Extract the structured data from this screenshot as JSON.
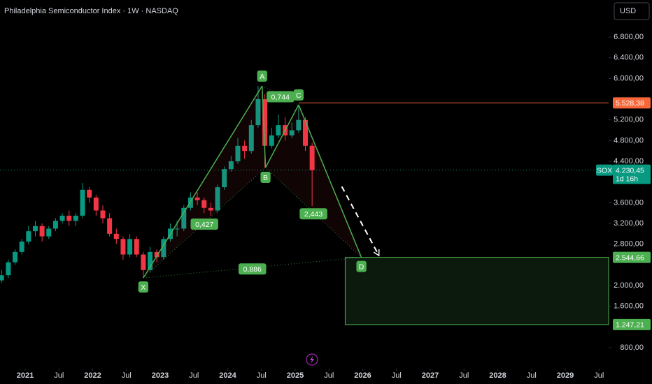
{
  "chart_data": {
    "type": "candlestick",
    "title": "Philadelphia Semiconductor Index · 1W · NASDAQ",
    "currency": "USD",
    "up_color": "#089981",
    "down_color": "#f23645",
    "x": [
      2020.65,
      2020.75,
      2020.85,
      2020.95,
      2021.05,
      2021.15,
      2021.25,
      2021.35,
      2021.45,
      2021.55,
      2021.65,
      2021.75,
      2021.85,
      2021.95,
      2022.05,
      2022.15,
      2022.25,
      2022.35,
      2022.45,
      2022.55,
      2022.65,
      2022.75,
      2022.85,
      2022.95,
      2023.05,
      2023.15,
      2023.25,
      2023.35,
      2023.45,
      2023.55,
      2023.65,
      2023.75,
      2023.85,
      2023.95,
      2024.05,
      2024.15,
      2024.25,
      2024.35,
      2024.45,
      2024.55,
      2024.65,
      2024.75,
      2024.85,
      2024.95,
      2025.05,
      2025.15,
      2025.25
    ],
    "open": [
      2100,
      2200,
      2450,
      2650,
      2850,
      3050,
      3150,
      2950,
      3100,
      3250,
      3350,
      3250,
      3350,
      3850,
      3700,
      3450,
      3300,
      3000,
      2900,
      2600,
      2900,
      2600,
      2300,
      2650,
      2550,
      2900,
      3100,
      3100,
      3500,
      3700,
      3650,
      3500,
      3450,
      3900,
      4250,
      4400,
      4700,
      4600,
      5100,
      5600,
      4700,
      4900,
      5100,
      4900,
      5000,
      5200,
      4700
    ],
    "high": [
      2300,
      2500,
      2700,
      2900,
      3150,
      3250,
      3200,
      3150,
      3300,
      3400,
      3450,
      3400,
      3982,
      3900,
      3750,
      3550,
      3400,
      3100,
      2950,
      3000,
      2950,
      2650,
      2750,
      2700,
      2950,
      3200,
      3250,
      3550,
      3800,
      3800,
      3700,
      3600,
      3950,
      4300,
      4500,
      4850,
      4800,
      5200,
      5856,
      5700,
      5050,
      5300,
      5250,
      5150,
      5492,
      5250,
      4750
    ],
    "low": [
      2050,
      2150,
      2400,
      2600,
      2800,
      2950,
      2850,
      2900,
      3050,
      3200,
      3150,
      3150,
      3300,
      3600,
      3350,
      3200,
      2950,
      2800,
      2500,
      2550,
      2550,
      2149,
      2250,
      2450,
      2500,
      2850,
      2950,
      3050,
      3450,
      3550,
      3400,
      3350,
      3400,
      3850,
      4200,
      4350,
      4450,
      4550,
      5050,
      4279,
      4650,
      4850,
      4800,
      4850,
      4950,
      4600,
      3537
    ],
    "close": [
      2200,
      2450,
      2650,
      2850,
      3050,
      3150,
      2950,
      3100,
      3250,
      3350,
      3250,
      3350,
      3850,
      3700,
      3450,
      3300,
      3000,
      2900,
      2600,
      2900,
      2600,
      2300,
      2650,
      2550,
      2900,
      3100,
      3100,
      3500,
      3700,
      3650,
      3500,
      3450,
      3900,
      4250,
      4400,
      4700,
      4600,
      5100,
      5600,
      4700,
      4900,
      5100,
      4900,
      5000,
      5200,
      4700,
      4230
    ],
    "xlim": [
      2020.627,
      2029.642
    ],
    "xticks": [
      2021,
      {
        "value": 2021.5,
        "label": "Jul"
      },
      2022,
      {
        "value": 2022.5,
        "label": "Jul"
      },
      2023,
      {
        "value": 2023.5,
        "label": "Jul"
      },
      2024,
      {
        "value": 2024.5,
        "label": "Jul"
      },
      2025,
      {
        "value": 2025.5,
        "label": "Jul"
      },
      2026,
      {
        "value": 2026.5,
        "label": "Jul"
      },
      2027,
      {
        "value": 2027.5,
        "label": "Jul"
      },
      2028,
      {
        "value": 2028.5,
        "label": "Jul"
      },
      2029,
      {
        "value": 2029.5,
        "label": "Jul"
      }
    ],
    "ylim": [
      396,
      7515
    ],
    "yticks": [
      {
        "value": 6800,
        "label": "6.800,00"
      },
      {
        "value": 6400,
        "label": "6.400,00"
      },
      {
        "value": 6000,
        "label": "6.000,00"
      },
      {
        "value": 5200,
        "label": "5.200,00"
      },
      {
        "value": 4800,
        "label": "4.800,00"
      },
      {
        "value": 4400,
        "label": "4.400,00"
      },
      {
        "value": 3600,
        "label": "3.600,00"
      },
      {
        "value": 3200,
        "label": "3.200,00"
      },
      {
        "value": 2800,
        "label": "2.800,00"
      },
      {
        "value": 2000,
        "label": "2.000,00"
      },
      {
        "value": 1600,
        "label": "1.600,00"
      },
      {
        "value": 800,
        "label": "800,00"
      }
    ],
    "grid": false,
    "pattern": {
      "color": "#4caf50",
      "points": [
        {
          "name": "X",
          "x": 2022.75,
          "y": 2149
        },
        {
          "name": "A",
          "x": 2024.51,
          "y": 5856
        },
        {
          "name": "B",
          "x": 2024.56,
          "y": 4279
        },
        {
          "name": "C",
          "x": 2025.05,
          "y": 5492
        },
        {
          "name": "D",
          "x": 2025.98,
          "y": 2545
        }
      ],
      "ratios": [
        {
          "label": "0,427",
          "from": 0,
          "to": 2
        },
        {
          "label": "0,744",
          "from": 1,
          "to": 3
        },
        {
          "label": "2,443",
          "from": 2,
          "to": 4
        },
        {
          "label": "0,886",
          "from": 0,
          "to": 4
        }
      ]
    },
    "level": {
      "value": 5528.38,
      "label": "5.528,38",
      "color": "#f7673a",
      "x_start": 2025.05
    },
    "last_price": {
      "value": 4230.45,
      "label": "4.230,45",
      "symbol": "SOX",
      "countdown": "1d 16h",
      "color": "#089981"
    },
    "target_zone": {
      "x_start": 2025.74,
      "top": {
        "value": 2544.66,
        "label": "2.544,66"
      },
      "bottom": {
        "value": 1247.21,
        "label": "1.247,21"
      },
      "color": "#4caf50"
    },
    "arrow": {
      "from": [
        2025.69,
        3912
      ],
      "to": [
        2026.24,
        2580
      ]
    }
  }
}
